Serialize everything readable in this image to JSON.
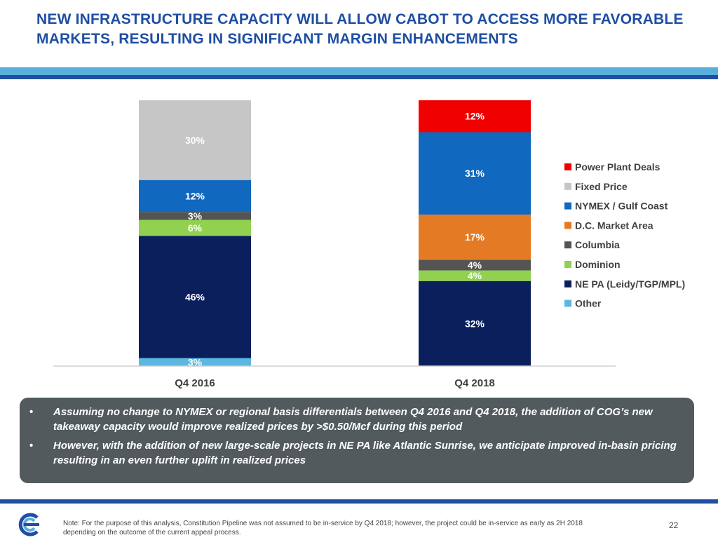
{
  "slide": {
    "title": "NEW INFRASTRUCTURE CAPACITY WILL ALLOW CABOT TO ACCESS MORE FAVORABLE MARKETS, RESULTING IN SIGNIFICANT MARGIN ENHANCEMENTS",
    "bullets": [
      "Assuming no change to NYMEX or regional basis differentials between Q4 2016 and Q4 2018, the addition of COG’s new takeaway capacity would improve realized prices by >$0.50/Mcf during this period",
      "However, with the addition of new large-scale projects in NE PA like Atlantic Sunrise, we anticipate improved in-basin pricing resulting in an even further uplift in realized prices"
    ],
    "bullet_char": "•",
    "footnote": "Note: For the purpose of this analysis, Constitution Pipeline was not assumed to be in-service by Q4 2018; however, the project could be in-service as early as 2H 2018 depending on the outcome of the current appeal process.",
    "page_number": "22",
    "colors": {
      "title": "#1f4ea3",
      "band_light": "#59aedd",
      "band_dark": "#1f4ea3",
      "callout": "#525a5e"
    }
  },
  "chart_data": {
    "type": "bar",
    "stacked": true,
    "categories": [
      "Q4 2016",
      "Q4 2018"
    ],
    "series": [
      {
        "name": "Other",
        "color": "#5bb8e0",
        "values": [
          3,
          0
        ]
      },
      {
        "name": "NE PA (Leidy/TGP/MPL)",
        "color": "#0a1f5c",
        "values": [
          46,
          32
        ]
      },
      {
        "name": "Dominion",
        "color": "#92d050",
        "values": [
          6,
          4
        ]
      },
      {
        "name": "Columbia",
        "color": "#545454",
        "values": [
          3,
          4
        ]
      },
      {
        "name": "D.C. Market Area",
        "color": "#e57a25",
        "values": [
          0,
          17
        ]
      },
      {
        "name": "NYMEX / Gulf Coast",
        "color": "#1068bf",
        "values": [
          12,
          31
        ]
      },
      {
        "name": "Fixed Price",
        "color": "#c6c6c6",
        "values": [
          30,
          0
        ]
      },
      {
        "name": "Power Plant Deals",
        "color": "#f00000",
        "values": [
          0,
          12
        ]
      }
    ],
    "labels": [
      [
        "3%",
        "46%",
        "6%",
        "3%",
        "",
        "12%",
        "30%",
        ""
      ],
      [
        "",
        "32%",
        "4%",
        "4%",
        "17%",
        "31%",
        "",
        "12%"
      ]
    ],
    "legend_order": [
      "Power Plant Deals",
      "Fixed Price",
      "NYMEX / Gulf Coast",
      "D.C. Market Area",
      "Columbia",
      "Dominion",
      "NE PA (Leidy/TGP/MPL)",
      "Other"
    ],
    "legend_position": "right",
    "ylim": [
      0,
      100
    ],
    "title": "",
    "xlabel": "",
    "ylabel": ""
  }
}
